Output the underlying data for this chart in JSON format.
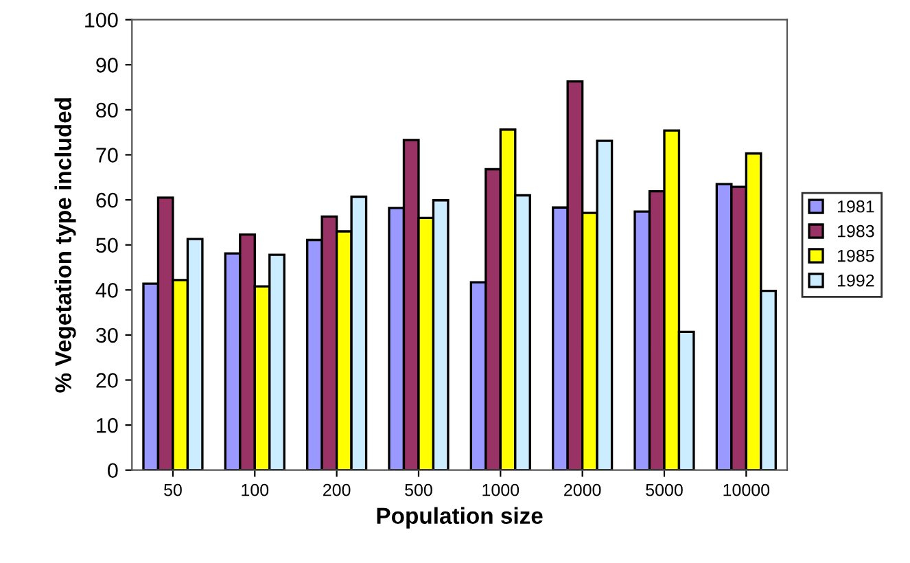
{
  "chart_data": {
    "type": "bar",
    "xlabel": "Population size",
    "ylabel": "% Vegetation type included",
    "categories": [
      "50",
      "100",
      "200",
      "500",
      "1000",
      "2000",
      "5000",
      "10000"
    ],
    "series": [
      {
        "name": "1981",
        "color": "#9999ff",
        "values": [
          41.4,
          48.1,
          51.1,
          58.2,
          41.7,
          58.3,
          57.4,
          63.5
        ]
      },
      {
        "name": "1983",
        "color": "#993366",
        "values": [
          60.5,
          52.3,
          56.3,
          73.3,
          66.8,
          86.3,
          61.9,
          62.9
        ]
      },
      {
        "name": "1985",
        "color": "#ffff00",
        "values": [
          42.2,
          40.8,
          53.0,
          56.0,
          75.6,
          57.1,
          75.4,
          70.3
        ]
      },
      {
        "name": "1992",
        "color": "#ccecff",
        "values": [
          51.3,
          47.8,
          60.7,
          59.9,
          61.0,
          73.1,
          30.7,
          39.8
        ]
      }
    ],
    "ylim": [
      0,
      100
    ],
    "yticks": [
      0,
      10,
      20,
      30,
      40,
      50,
      60,
      70,
      80,
      90,
      100
    ],
    "grid": false,
    "legend": "right"
  }
}
